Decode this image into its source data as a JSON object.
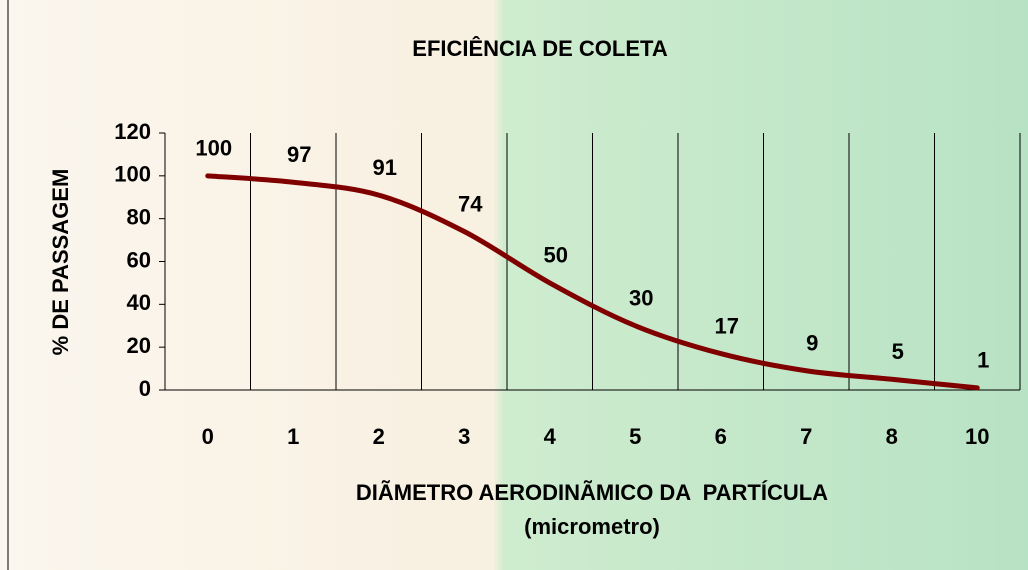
{
  "chart_data": {
    "type": "line",
    "title": "EFICIÊNCIA DE COLETA",
    "x_label": [
      "DIÃMETRO AERODINÃMICO DA  PARTÍCULA",
      "(micrometro)"
    ],
    "y_label": "% DE PASSAGEM",
    "categories": [
      "0",
      "1",
      "2",
      "3",
      "4",
      "5",
      "6",
      "7",
      "8",
      "10"
    ],
    "values": [
      100,
      97,
      91,
      74,
      50,
      30,
      17,
      9,
      5,
      1
    ],
    "color": "#800000",
    "ylim": [
      0,
      120
    ],
    "yticks": [
      0,
      20,
      40,
      60,
      80,
      100,
      120
    ],
    "grid": true
  }
}
